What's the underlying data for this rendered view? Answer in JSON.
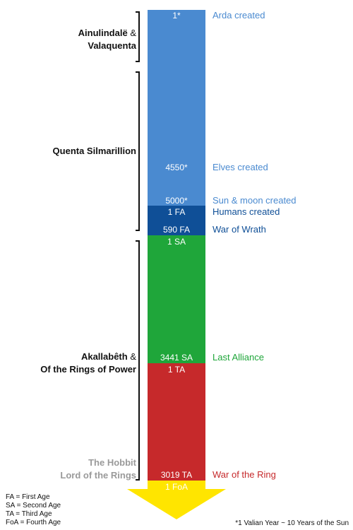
{
  "colors": {
    "valian": "#4a8ad0",
    "first_age": "#0f4f97",
    "second_age": "#1fa63a",
    "third_age": "#c6292b",
    "fourth_age": "#ffe500"
  },
  "bar_labels": {
    "arda": "1*",
    "elves": "4550*",
    "sun_moon": "5000*",
    "fa1": "1 FA",
    "fa590": "590 FA",
    "sa1": "1 SA",
    "sa3441": "3441 SA",
    "ta1": "1 TA",
    "ta3019": "3019 TA",
    "foa1": "1 FoA"
  },
  "events": {
    "arda": "Arda created",
    "elves": "Elves created",
    "sun_moon": "Sun & moon created",
    "humans": "Humans created",
    "wrath": "War of Wrath",
    "alliance": "Last Alliance",
    "ring": "War of the Ring"
  },
  "books": {
    "ainulindale": "Ainulindalë",
    "amp1": " &",
    "valaquenta": "Valaquenta",
    "silmarillion": "Quenta Silmarillion",
    "akallabeth": "Akallabêth",
    "amp2": " &",
    "rings_of_power": "Of the Rings of Power",
    "hobbit": "The Hobbit",
    "lotr": "Lord of the Rings"
  },
  "legend": {
    "fa": "FA = First Age",
    "sa": "SA = Second Age",
    "ta": "TA = Third Age",
    "foa": "FoA = Fourth Age"
  },
  "footnote": "*1 Valian Year ~ 10 Years of the Sun"
}
